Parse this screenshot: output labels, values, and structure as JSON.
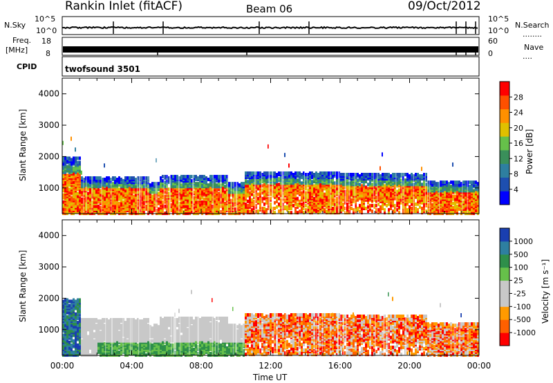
{
  "header": {
    "station": "Rankin Inlet (fitACF)",
    "beam": "Beam 06",
    "date": "09/Oct/2012"
  },
  "aux_panels": {
    "nsky_label": "N.Sky",
    "nsky_ticks": [
      "10^5",
      "10^0"
    ],
    "nsearch_label": "N.Search",
    "nsearch_ticks": [
      "10^5",
      "10^0"
    ],
    "freq_label_line1": "Freq.",
    "freq_label_line2": "[MHz]",
    "freq_ticks": [
      "18",
      "8"
    ],
    "nave_label": "Nave",
    "nave_ticks": [
      "60",
      "0"
    ],
    "cpid_label": "CPID",
    "cpid_value": "twofsound 3501"
  },
  "colors": {
    "power": [
      "#0000ff",
      "#1e4fb0",
      "#2e7fa0",
      "#3a8f5a",
      "#66c04a",
      "#e0c000",
      "#ff9000",
      "#ff5000",
      "#ff0000"
    ],
    "velocity": [
      "#ff0000",
      "#ff6000",
      "#ff9a00",
      "#c8c8c8",
      "#c8c8c8",
      "#66c04a",
      "#2e8f4a",
      "#2e7fa0",
      "#1a3fb0"
    ]
  },
  "chart_data": [
    {
      "type": "heatmap",
      "title": "Power",
      "ylabel": "Slant Range [km]",
      "xlabel": "",
      "x_ticks": [
        "00:00",
        "04:00",
        "08:00",
        "12:00",
        "16:00",
        "20:00",
        "00:00"
      ],
      "y_ticks": [
        1000,
        2000,
        3000,
        4000
      ],
      "ylim": [
        180,
        4500
      ],
      "xlim_hours": [
        0,
        24
      ],
      "colorbar_label": "Power [dB]",
      "colorbar_ticks": [
        "28",
        "24",
        "20",
        "16",
        "12",
        "8",
        "4"
      ],
      "colorbar_range": [
        0,
        32
      ]
    },
    {
      "type": "heatmap",
      "title": "Velocity",
      "ylabel": "Slant Range [km]",
      "xlabel": "Time UT",
      "x_ticks": [
        "00:00",
        "04:00",
        "08:00",
        "12:00",
        "16:00",
        "20:00",
        "00:00"
      ],
      "y_ticks": [
        1000,
        2000,
        3000,
        4000
      ],
      "ylim": [
        180,
        4500
      ],
      "xlim_hours": [
        0,
        24
      ],
      "colorbar_label": "Velocity [m s⁻¹]",
      "colorbar_ticks": [
        "1000",
        "500",
        "100",
        "25",
        "-25",
        "-100",
        "-500",
        "-1000"
      ]
    }
  ]
}
